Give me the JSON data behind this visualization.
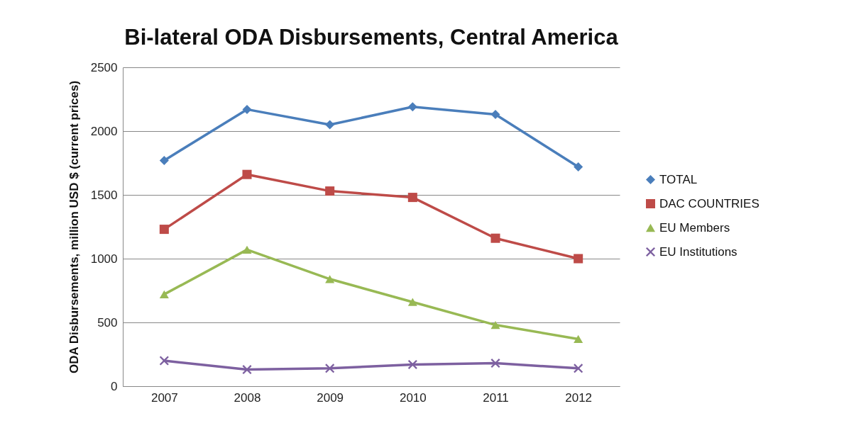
{
  "chart_data": {
    "type": "line",
    "title": "Bi-lateral ODA Disbursements, Central America",
    "ylabel": "ODA Disbursements, million USD $ (current prices)",
    "categories": [
      "2007",
      "2008",
      "2009",
      "2010",
      "2011",
      "2012"
    ],
    "series": [
      {
        "name": "TOTAL",
        "color": "#4a7ebb",
        "marker": "diamond",
        "values": [
          1770,
          2170,
          2050,
          2190,
          2130,
          1720
        ]
      },
      {
        "name": "DAC COUNTRIES",
        "color": "#be4b48",
        "marker": "square",
        "values": [
          1230,
          1660,
          1530,
          1480,
          1160,
          1000
        ]
      },
      {
        "name": "EU Members",
        "color": "#98b954",
        "marker": "triangle",
        "values": [
          720,
          1070,
          840,
          660,
          480,
          370
        ]
      },
      {
        "name": "EU Institutions",
        "color": "#7d60a0",
        "marker": "cross",
        "values": [
          200,
          130,
          140,
          170,
          180,
          140
        ]
      }
    ],
    "ylim": [
      0,
      2500
    ],
    "yticks": [
      0,
      500,
      1000,
      1500,
      2000,
      2500
    ],
    "grid": "y",
    "legend": "right",
    "line_style": "solid"
  }
}
